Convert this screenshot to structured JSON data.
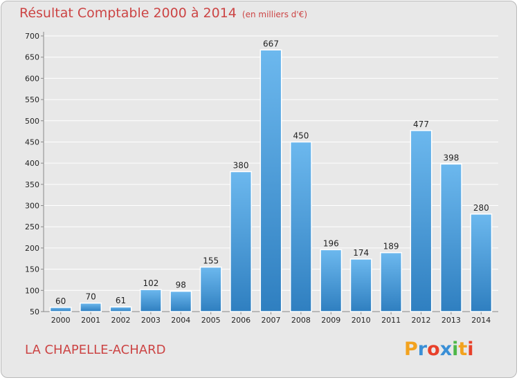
{
  "title": "Résultat Comptable 2000 à 2014",
  "unit_note": "(en milliers d'€)",
  "city": "LA CHAPELLE-ACHARD",
  "logo": {
    "letters": [
      "P",
      "r",
      "o",
      "x",
      "i",
      "t",
      "i"
    ],
    "colors": [
      "#f2a21e",
      "#3a8fd6",
      "#e8402a",
      "#3a8fd6",
      "#4db848",
      "#f2a21e",
      "#e8402a"
    ]
  },
  "colors": {
    "bar_top": "#6cb8ee",
    "bar_bottom": "#2f7fc0",
    "title": "#cc4444",
    "grid": "#ffffff"
  },
  "chart_data": {
    "type": "bar",
    "title": "Résultat Comptable 2000 à 2014",
    "xlabel": "",
    "ylabel": "",
    "ylim": [
      50,
      700
    ],
    "yticks": [
      50,
      100,
      150,
      200,
      250,
      300,
      350,
      400,
      450,
      500,
      550,
      600,
      650,
      700
    ],
    "categories": [
      "2000",
      "2001",
      "2002",
      "2003",
      "2004",
      "2005",
      "2006",
      "2007",
      "2008",
      "2009",
      "2010",
      "2011",
      "2012",
      "2013",
      "2014"
    ],
    "values": [
      60,
      70,
      61,
      102,
      98,
      155,
      380,
      667,
      450,
      196,
      174,
      189,
      477,
      398,
      280
    ],
    "grid": true
  }
}
